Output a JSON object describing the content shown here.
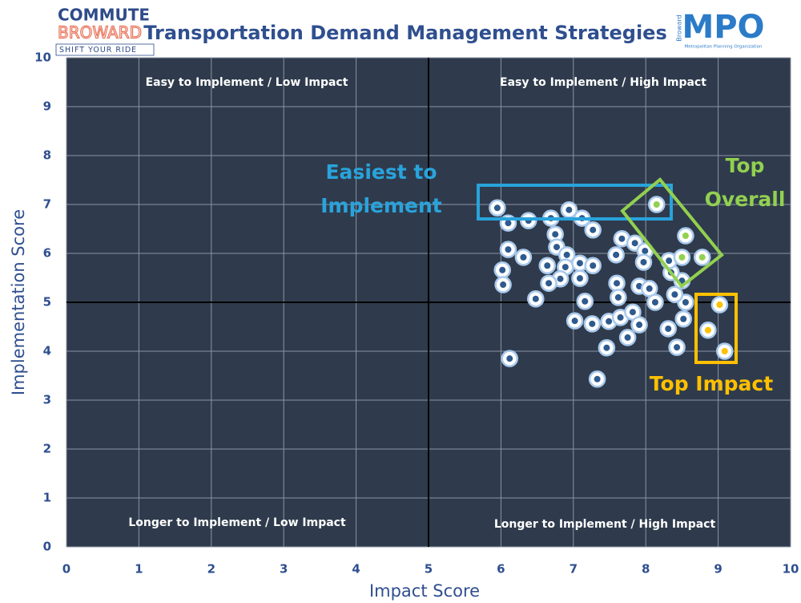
{
  "chart_data": {
    "type": "scatter",
    "title": "Transportation Demand Management Strategies",
    "xlabel": "Impact Score",
    "ylabel": "Implementation Score",
    "xlim": [
      0,
      10
    ],
    "ylim": [
      0,
      10
    ],
    "xticks": [
      0,
      1,
      2,
      3,
      4,
      5,
      6,
      7,
      8,
      9,
      10
    ],
    "yticks": [
      0,
      1,
      2,
      3,
      4,
      5,
      6,
      7,
      8,
      9,
      10
    ],
    "grid": true,
    "dividers": {
      "x": 5,
      "y": 5
    },
    "quadrant_labels": [
      "Easy to Implement / Low Impact",
      "Easy to Implement / High Impact",
      "Longer to Implement / Low Impact",
      "Longer to Implement / High Impact"
    ],
    "annotations": [
      {
        "lines": [
          "Easiest to",
          "Implement"
        ],
        "color": "#29a3dc"
      },
      {
        "lines": [
          "Top",
          "Overall"
        ],
        "color": "#92d050"
      },
      {
        "lines": [
          "Top Impact"
        ],
        "color": "#ffc000"
      }
    ],
    "logos": {
      "commute": "COMMUTE",
      "broward": "BROWARD",
      "tagline": "SHIFT YOUR RIDE",
      "mpo": "MPO",
      "mpo_county": "Broward",
      "mpo_name": "Metropolitan Planning Organization"
    },
    "series": [
      {
        "color": "#2e5a8e",
        "x": [
          5.95,
          6.1,
          6.38,
          6.69,
          6.94,
          7.12,
          7.27,
          6.75,
          6.1,
          6.77,
          6.31,
          6.02,
          6.03,
          6.64,
          6.91,
          6.89,
          7.09,
          7.27,
          6.82,
          6.66,
          7.09,
          6.48,
          7.16,
          7.67,
          7.85,
          7.59,
          7.99,
          7.97,
          7.6,
          7.62,
          7.91,
          8.05,
          8.13,
          8.55,
          8.4,
          8.5,
          8.35,
          8.32,
          7.02,
          7.26,
          7.49,
          7.65,
          7.82,
          7.91,
          7.75,
          7.46,
          7.33,
          6.12,
          8.31,
          8.52,
          8.43
        ],
        "values": [
          6.93,
          6.62,
          6.67,
          6.72,
          6.89,
          6.72,
          6.48,
          6.39,
          6.08,
          6.13,
          5.92,
          5.66,
          5.36,
          5.75,
          5.97,
          5.72,
          5.8,
          5.75,
          5.48,
          5.39,
          5.49,
          5.07,
          5.02,
          6.3,
          6.21,
          5.97,
          6.05,
          5.82,
          5.39,
          5.1,
          5.33,
          5.28,
          5.0,
          5.0,
          5.16,
          5.44,
          5.61,
          5.85,
          4.62,
          4.56,
          4.61,
          4.69,
          4.8,
          4.54,
          4.28,
          4.07,
          3.43,
          3.85,
          4.46,
          4.66,
          4.08
        ]
      },
      {
        "color": "#92d050",
        "x": [
          8.15,
          8.55,
          8.5,
          8.78
        ],
        "values": [
          7.0,
          6.36,
          5.92,
          5.92
        ]
      },
      {
        "color": "#ffc000",
        "x": [
          9.02,
          8.86,
          9.09
        ],
        "values": [
          4.95,
          4.43,
          4.0
        ]
      }
    ]
  }
}
